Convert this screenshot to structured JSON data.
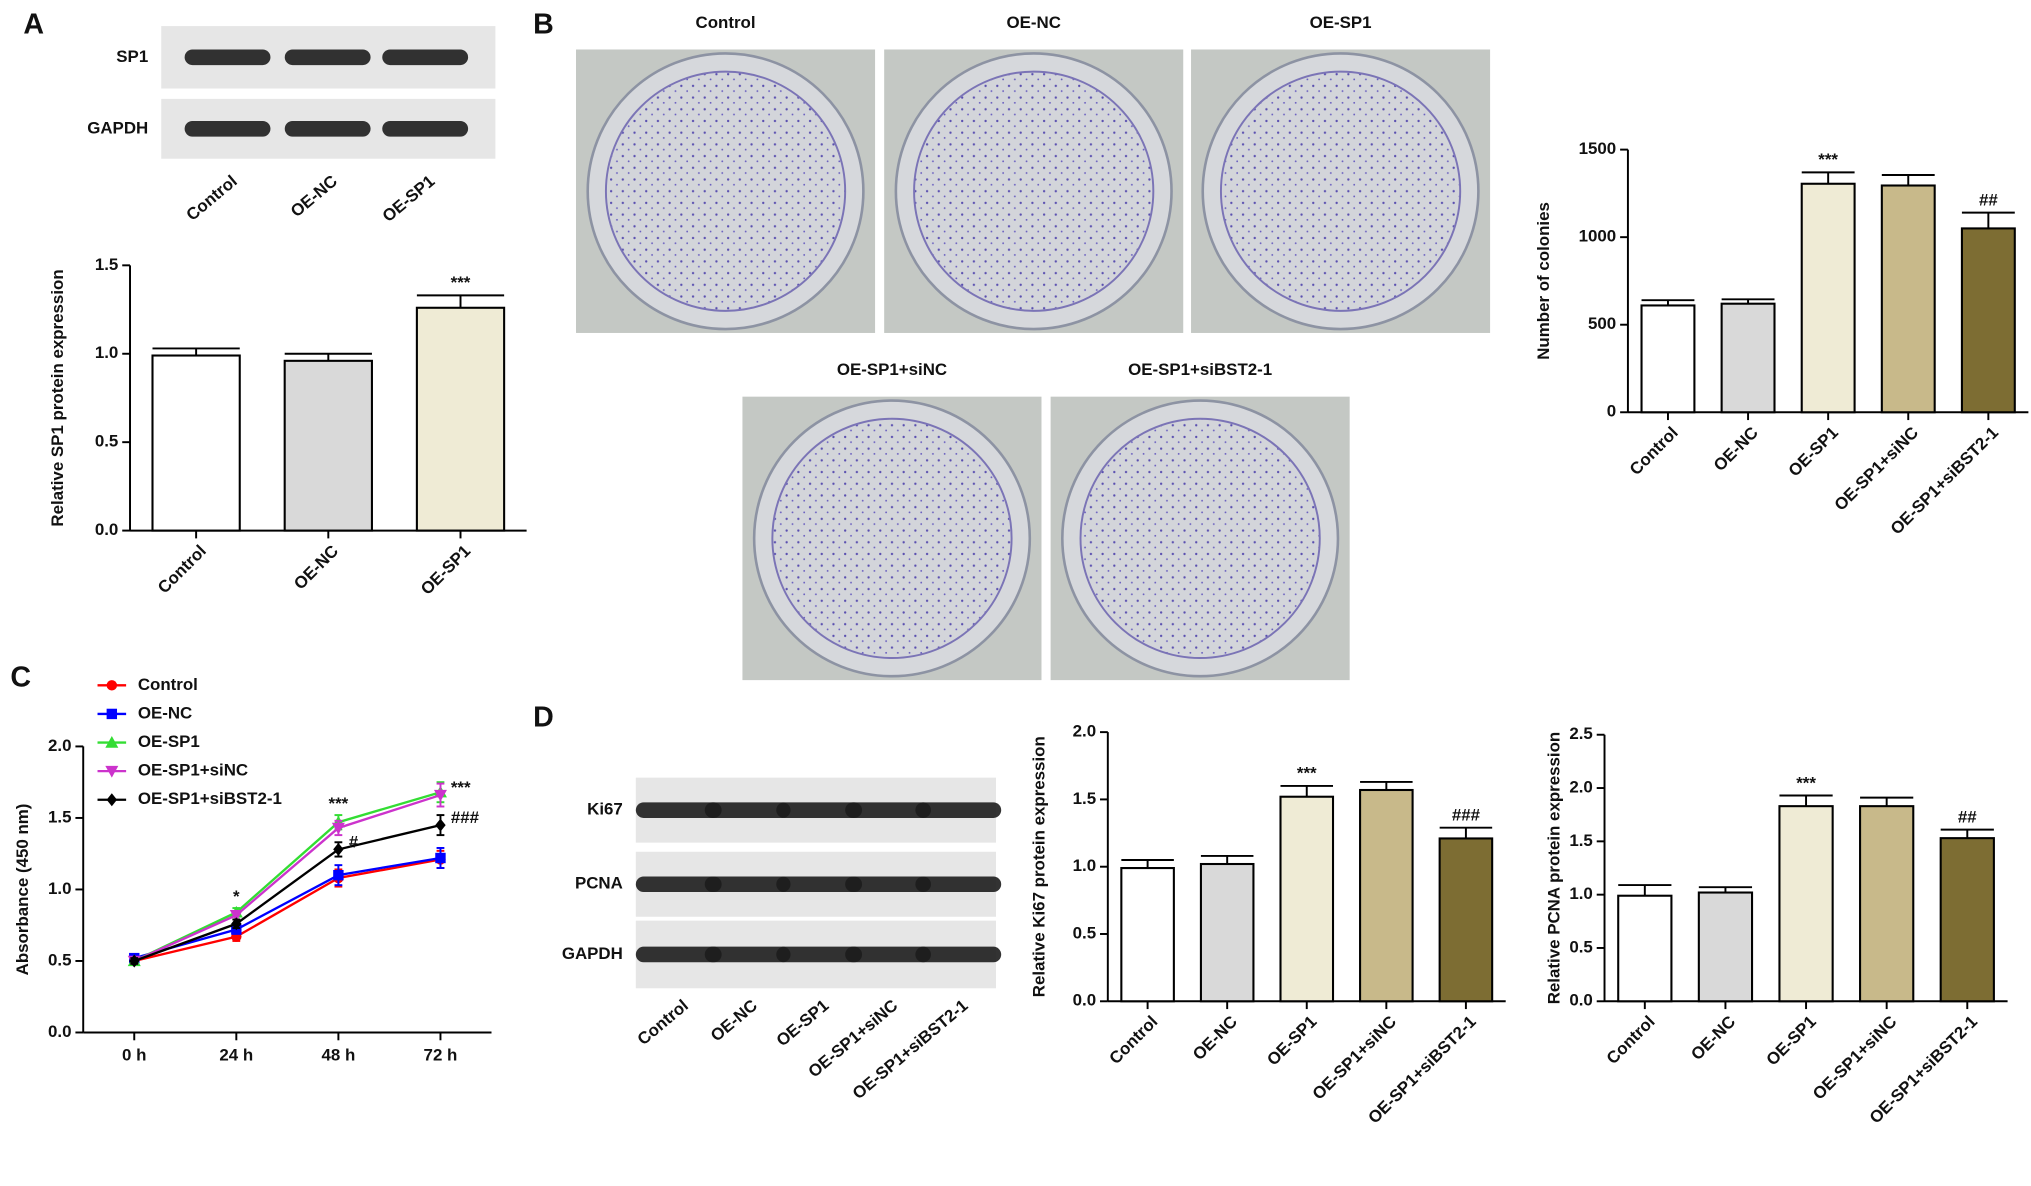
{
  "panel_labels": [
    "A",
    "B",
    "C",
    "D"
  ],
  "blots": [
    {
      "rows": [
        "SP1",
        "GAPDH"
      ],
      "lanes": [
        "Control",
        "OE-NC",
        "OE-SP1"
      ]
    },
    {
      "rows": [
        "Ki67",
        "PCNA",
        "GAPDH"
      ],
      "lanes": [
        "Control",
        "OE-NC",
        "OE-SP1",
        "OE-SP1+siNC",
        "OE-SP1+siBST2-1"
      ]
    }
  ],
  "photos": {
    "labels": [
      "Control",
      "OE-NC",
      "OE-SP1",
      "OE-SP1+siNC",
      "OE-SP1+siBST2-1"
    ]
  },
  "chart_data": [
    {
      "type": "bar",
      "ylabel": "Relative SP1 protein expression",
      "categories": [
        "Control",
        "OE-NC",
        "OE-SP1"
      ],
      "values": [
        0.99,
        0.96,
        1.26
      ],
      "errors": [
        0.04,
        0.04,
        0.07
      ],
      "annotations": [
        null,
        null,
        "***"
      ],
      "colors": [
        "#ffffff",
        "#d9d9d9",
        "#efebd5"
      ],
      "ylim": [
        0,
        1.5
      ],
      "yticks": [
        {
          "value": 0,
          "label": "0.0"
        },
        0.5,
        {
          "value": 1,
          "label": "1.0"
        },
        1.5
      ]
    },
    {
      "type": "bar",
      "ylabel": "Number of colonies",
      "categories": [
        "Control",
        "OE-NC",
        "OE-SP1",
        "OE-SP1+siNC",
        "OE-SP1+siBST2-1"
      ],
      "values": [
        610,
        620,
        1305,
        1295,
        1050
      ],
      "errors": [
        30,
        25,
        65,
        60,
        90
      ],
      "annotations": [
        null,
        null,
        "***",
        null,
        "##"
      ],
      "colors": [
        "#ffffff",
        "#d9d9d9",
        "#efebd5",
        "#c8b98a",
        "#7d6d33"
      ],
      "ylim": [
        0,
        1500
      ],
      "yticks": [
        0,
        500,
        1000,
        1500
      ]
    },
    {
      "type": "line",
      "ylabel": "Absorbance (450 nm)",
      "categories": [
        "0 h",
        "24 h",
        "48 h",
        "72 h"
      ],
      "series": [
        {
          "name": "Control",
          "color": "#ff0000",
          "values": [
            0.5,
            0.67,
            1.08,
            1.21
          ],
          "errors": [
            0.02,
            0.03,
            0.06,
            0.06
          ],
          "annotations": [
            null,
            null,
            null,
            null
          ]
        },
        {
          "name": "OE-NC",
          "color": "#0000ff",
          "values": [
            0.52,
            0.72,
            1.1,
            1.22
          ],
          "errors": [
            0.02,
            0.03,
            0.07,
            0.07
          ],
          "annotations": [
            null,
            null,
            null,
            null
          ]
        },
        {
          "name": "OE-SP1",
          "color": "#33dd33",
          "values": [
            0.5,
            0.84,
            1.47,
            1.68
          ],
          "errors": [
            0.02,
            0.03,
            0.05,
            0.07
          ],
          "annotations": [
            null,
            "*",
            "***",
            null
          ]
        },
        {
          "name": "OE-SP1+siNC",
          "color": "#cc33cc",
          "values": [
            0.5,
            0.82,
            1.43,
            1.66
          ],
          "errors": [
            0.02,
            0.03,
            0.05,
            0.08
          ],
          "annotations": [
            null,
            null,
            null,
            "***"
          ]
        },
        {
          "name": "OE-SP1+siBST2-1",
          "color": "#000000",
          "values": [
            0.5,
            0.76,
            1.28,
            1.45
          ],
          "errors": [
            0.02,
            0.03,
            0.05,
            0.07
          ],
          "annotations": [
            null,
            null,
            "#",
            "###"
          ]
        }
      ],
      "ylim": [
        0,
        2
      ],
      "yticks": [
        {
          "value": 0,
          "label": "0.0"
        },
        0.5,
        {
          "value": 1,
          "label": "1.0"
        },
        1.5,
        {
          "value": 2,
          "label": "2.0"
        }
      ]
    },
    {
      "type": "bar",
      "ylabel": "Relative Ki67 protein expression",
      "categories": [
        "Control",
        "OE-NC",
        "OE-SP1",
        "OE-SP1+siNC",
        "OE-SP1+siBST2-1"
      ],
      "values": [
        0.99,
        1.02,
        1.52,
        1.57,
        1.21
      ],
      "errors": [
        0.06,
        0.06,
        0.08,
        0.06,
        0.08
      ],
      "annotations": [
        null,
        null,
        "***",
        null,
        "###"
      ],
      "colors": [
        "#ffffff",
        "#d9d9d9",
        "#efebd5",
        "#c8b98a",
        "#7d6d33"
      ],
      "ylim": [
        0,
        2
      ],
      "yticks": [
        {
          "value": 0,
          "label": "0.0"
        },
        0.5,
        {
          "value": 1,
          "label": "1.0"
        },
        1.5,
        {
          "value": 2,
          "label": "2.0"
        }
      ]
    },
    {
      "type": "bar",
      "ylabel": "Relative PCNA protein expression",
      "categories": [
        "Control",
        "OE-NC",
        "OE-SP1",
        "OE-SP1+siNC",
        "OE-SP1+siBST2-1"
      ],
      "values": [
        0.99,
        1.02,
        1.83,
        1.83,
        1.53
      ],
      "errors": [
        0.1,
        0.05,
        0.1,
        0.08,
        0.08
      ],
      "annotations": [
        null,
        null,
        "***",
        null,
        "##"
      ],
      "colors": [
        "#ffffff",
        "#d9d9d9",
        "#efebd5",
        "#c8b98a",
        "#7d6d33"
      ],
      "ylim": [
        0,
        2.5
      ],
      "yticks": [
        {
          "value": 0,
          "label": "0.0"
        },
        0.5,
        {
          "value": 1,
          "label": "1.0"
        },
        1.5,
        {
          "value": 2,
          "label": "2.0"
        },
        2.5
      ]
    }
  ]
}
